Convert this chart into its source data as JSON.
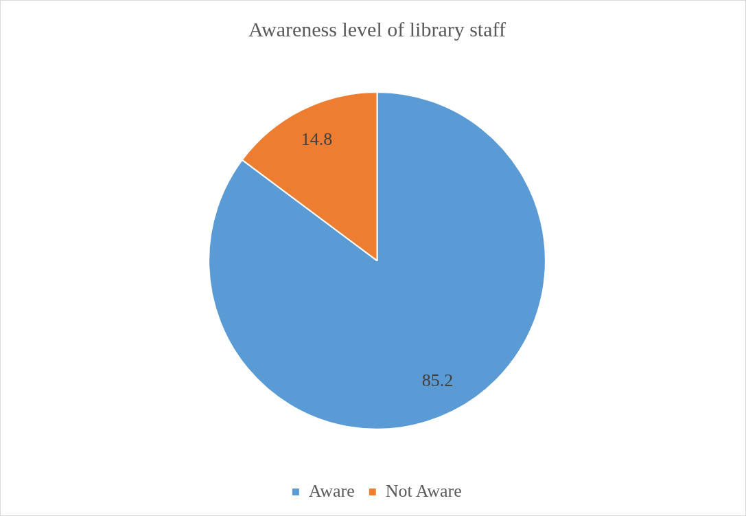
{
  "chart_data": {
    "type": "pie",
    "title": "Awareness level of library staff",
    "categories": [
      "Aware",
      "Not Aware"
    ],
    "values": [
      85.2,
      14.8
    ],
    "colors": [
      "#5b9bd5",
      "#ed7d31"
    ],
    "data_labels": true,
    "legend": "bottom"
  }
}
